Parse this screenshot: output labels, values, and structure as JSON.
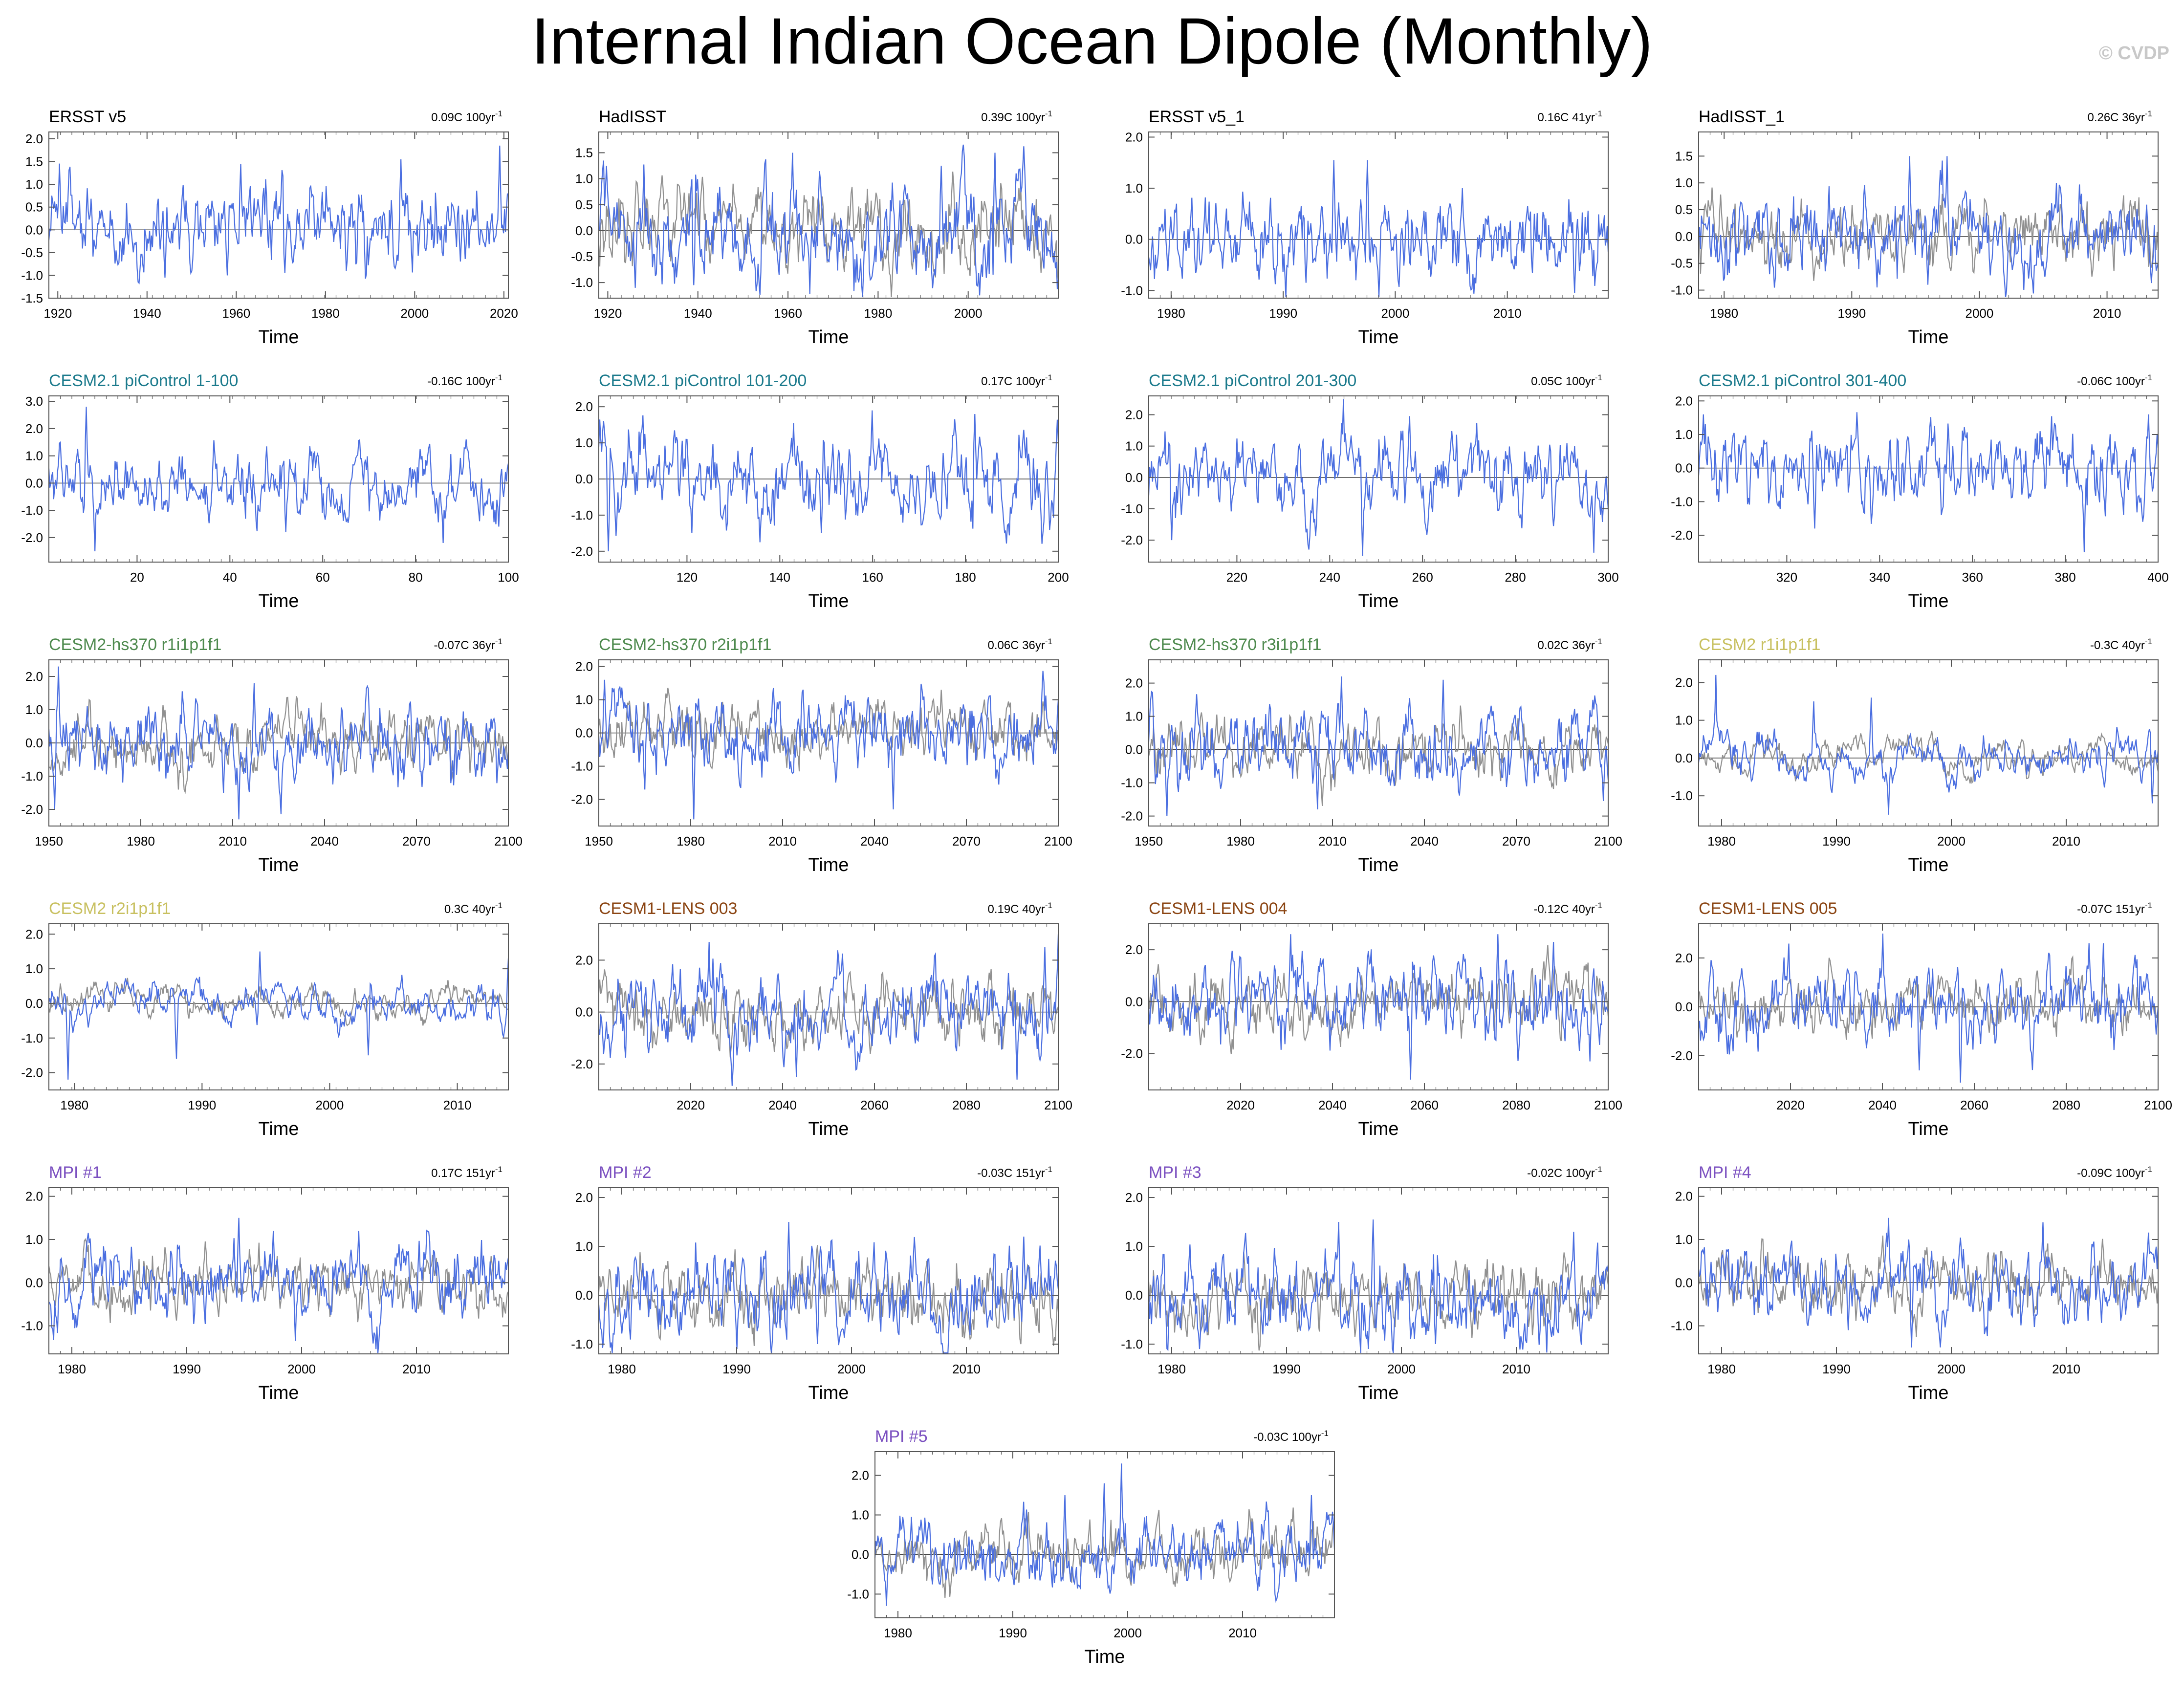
{
  "page_title": "Internal Indian Ocean Dipole (Monthly)",
  "copyright": "© CVDP",
  "x_axis_label": "Time",
  "colors": {
    "model": "#4a6ee0",
    "observed": "#909090",
    "zero_line": "#404040",
    "frame": "#555555"
  },
  "chart_data": [
    {
      "type": "line",
      "title": "ERSST v5",
      "title_color": "#000000",
      "trend": "0.09C 100yr",
      "trend_sup": "-1",
      "xlim": [
        1918,
        2021
      ],
      "ylim": [
        -1.5,
        2.15
      ],
      "xticks": [
        "1920",
        "1940",
        "1960",
        "1980",
        "2000",
        "2020"
      ],
      "yticks": [
        "-1.5",
        "-1.0",
        "-0.5",
        "0.0",
        "0.5",
        "1.0",
        "1.5",
        "2.0"
      ],
      "seed": 11,
      "amp": 0.55,
      "overlay": false,
      "spikes": [
        [
          1961,
          1.45
        ],
        [
          1997,
          1.55
        ],
        [
          2019,
          1.85
        ],
        [
          1944,
          -1.05
        ],
        [
          1958,
          -1.0
        ],
        [
          1971,
          -0.95
        ]
      ]
    },
    {
      "type": "line",
      "title": "HadISST",
      "title_color": "#000000",
      "trend": "0.39C 100yr",
      "trend_sup": "-1",
      "xlim": [
        1918,
        2020
      ],
      "ylim": [
        -1.3,
        1.9
      ],
      "xticks": [
        "1920",
        "1940",
        "1960",
        "1980",
        "2000"
      ],
      "yticks": [
        "-1.0",
        "-0.5",
        "0.0",
        "0.5",
        "1.0",
        "1.5"
      ],
      "seed": 12,
      "amp": 0.55,
      "overlay": true,
      "spikes": [
        [
          1961,
          1.5
        ],
        [
          1994,
          1.25
        ],
        [
          2006,
          1.5
        ],
        [
          1926,
          -1.1
        ],
        [
          1939,
          -1.05
        ],
        [
          1975,
          -1.0
        ]
      ]
    },
    {
      "type": "line",
      "title": "ERSST v5_1",
      "title_color": "#000000",
      "trend": "0.16C 41yr",
      "trend_sup": "-1",
      "xlim": [
        1978,
        2019
      ],
      "ylim": [
        -1.15,
        2.1
      ],
      "xticks": [
        "1980",
        "1990",
        "2000",
        "2010"
      ],
      "yticks": [
        "-1.0",
        "0.0",
        "1.0",
        "2.0"
      ],
      "seed": 13,
      "amp": 0.5,
      "overlay": false,
      "spikes": [
        [
          1994.5,
          1.55
        ],
        [
          1997.5,
          1.55
        ],
        [
          2006,
          1.0
        ],
        [
          2016,
          -1.05
        ],
        [
          1992,
          -0.85
        ]
      ]
    },
    {
      "type": "line",
      "title": "HadISST_1",
      "title_color": "#000000",
      "trend": "0.26C 36yr",
      "trend_sup": "-1",
      "xlim": [
        1978,
        2014
      ],
      "ylim": [
        -1.15,
        1.95
      ],
      "xticks": [
        "1980",
        "1990",
        "2000",
        "2010"
      ],
      "yticks": [
        "-1.0",
        "-0.5",
        "0.0",
        "0.5",
        "1.0",
        "1.5"
      ],
      "seed": 14,
      "amp": 0.45,
      "overlay": true,
      "spikes": [
        [
          1994.5,
          1.5
        ],
        [
          1997.5,
          1.5
        ],
        [
          2006,
          1.0
        ],
        [
          1992,
          -0.95
        ],
        [
          1996,
          -0.9
        ]
      ]
    },
    {
      "type": "line",
      "title": "CESM2.1 piControl 1-100",
      "title_color": "#1b7a8c",
      "trend": "-0.16C 100yr",
      "trend_sup": "-1",
      "xlim": [
        1,
        100
      ],
      "ylim": [
        -2.9,
        3.2
      ],
      "xticks": [
        "20",
        "40",
        "60",
        "80",
        "100"
      ],
      "yticks": [
        "-2.0",
        "-1.0",
        "0.0",
        "1.0",
        "2.0",
        "3.0"
      ],
      "seed": 21,
      "amp": 0.7,
      "overlay": false,
      "spikes": [
        [
          9,
          2.8
        ],
        [
          11,
          -2.5
        ],
        [
          86,
          -2.2
        ],
        [
          98,
          -1.6
        ],
        [
          52,
          -1.8
        ]
      ]
    },
    {
      "type": "line",
      "title": "CESM2.1 piControl 101-200",
      "title_color": "#1b7a8c",
      "trend": "0.17C 100yr",
      "trend_sup": "-1",
      "xlim": [
        101,
        200
      ],
      "ylim": [
        -2.3,
        2.3
      ],
      "xticks": [
        "120",
        "140",
        "160",
        "180",
        "200"
      ],
      "yticks": [
        "-2.0",
        "-1.0",
        "0.0",
        "1.0",
        "2.0"
      ],
      "seed": 22,
      "amp": 0.7,
      "overlay": false,
      "spikes": [
        [
          103,
          -2.0
        ],
        [
          160,
          1.9
        ],
        [
          182,
          1.8
        ],
        [
          121,
          -1.5
        ],
        [
          149,
          -1.5
        ]
      ]
    },
    {
      "type": "line",
      "title": "CESM2.1 piControl 201-300",
      "title_color": "#1b7a8c",
      "trend": "0.05C 100yr",
      "trend_sup": "-1",
      "xlim": [
        201,
        300
      ],
      "ylim": [
        -2.7,
        2.6
      ],
      "xticks": [
        "220",
        "240",
        "260",
        "280",
        "300"
      ],
      "yticks": [
        "-2.0",
        "-1.0",
        "0.0",
        "1.0",
        "2.0"
      ],
      "seed": 23,
      "amp": 0.7,
      "overlay": false,
      "spikes": [
        [
          243,
          2.5
        ],
        [
          247,
          -2.5
        ],
        [
          297,
          -2.4
        ],
        [
          206,
          -2.0
        ]
      ]
    },
    {
      "type": "line",
      "title": "CESM2.1 piControl 301-400",
      "title_color": "#1b7a8c",
      "trend": "-0.06C 100yr",
      "trend_sup": "-1",
      "xlim": [
        301,
        400
      ],
      "ylim": [
        -2.8,
        2.15
      ],
      "xticks": [
        "320",
        "340",
        "360",
        "380",
        "400"
      ],
      "yticks": [
        "-2.0",
        "-1.0",
        "0.0",
        "1.0",
        "2.0"
      ],
      "seed": 24,
      "amp": 0.7,
      "overlay": false,
      "spikes": [
        [
          384,
          -2.5
        ],
        [
          398,
          1.6
        ],
        [
          326,
          -1.8
        ],
        [
          302,
          1.6
        ]
      ]
    },
    {
      "type": "line",
      "title": "CESM2-hs370 r1i1p1f1",
      "title_color": "#4e8a4e",
      "trend": "-0.07C 36yr",
      "trend_sup": "-1",
      "xlim": [
        1950,
        2100
      ],
      "ylim": [
        -2.5,
        2.5
      ],
      "xticks": [
        "1950",
        "1980",
        "2010",
        "2040",
        "2070",
        "2100"
      ],
      "yticks": [
        "-2.0",
        "-1.0",
        "0.0",
        "1.0",
        "2.0"
      ],
      "seed": 31,
      "amp": 0.65,
      "overlay": true,
      "spikes": [
        [
          1953,
          2.3
        ],
        [
          1952,
          -2.0
        ],
        [
          2012,
          -2.3
        ],
        [
          2017,
          1.8
        ],
        [
          2007,
          -1.5
        ]
      ]
    },
    {
      "type": "line",
      "title": "CESM2-hs370 r2i1p1f1",
      "title_color": "#4e8a4e",
      "trend": "0.06C 36yr",
      "trend_sup": "-1",
      "xlim": [
        1950,
        2100
      ],
      "ylim": [
        -2.8,
        2.2
      ],
      "xticks": [
        "1950",
        "1980",
        "2010",
        "2040",
        "2070",
        "2100"
      ],
      "yticks": [
        "-2.0",
        "-1.0",
        "0.0",
        "1.0",
        "2.0"
      ],
      "seed": 32,
      "amp": 0.65,
      "overlay": true,
      "spikes": [
        [
          1981,
          -2.6
        ],
        [
          2046,
          -2.3
        ],
        [
          1952,
          1.6
        ],
        [
          2100,
          1.0
        ]
      ]
    },
    {
      "type": "line",
      "title": "CESM2-hs370 r3i1p1f1",
      "title_color": "#4e8a4e",
      "trend": "0.02C 36yr",
      "trend_sup": "-1",
      "xlim": [
        1950,
        2100
      ],
      "ylim": [
        -2.3,
        2.7
      ],
      "xticks": [
        "1950",
        "1980",
        "2010",
        "2040",
        "2070",
        "2100"
      ],
      "yticks": [
        "-2.0",
        "-1.0",
        "0.0",
        "1.0",
        "2.0"
      ],
      "seed": 33,
      "amp": 0.65,
      "overlay": true,
      "spikes": [
        [
          2013,
          2.2
        ],
        [
          2046,
          2.1
        ],
        [
          1956,
          -2.0
        ],
        [
          2005,
          -1.8
        ]
      ]
    },
    {
      "type": "line",
      "title": "CESM2 r1i1p1f1",
      "title_color": "#c8c060",
      "trend": "-0.3C 40yr",
      "trend_sup": "-1",
      "xlim": [
        1978,
        2018
      ],
      "ylim": [
        -1.8,
        2.6
      ],
      "xticks": [
        "1980",
        "1990",
        "2000",
        "2010"
      ],
      "yticks": [
        "-1.0",
        "0.0",
        "1.0",
        "2.0"
      ],
      "seed": 34,
      "amp": 0.55,
      "overlay": true,
      "smooth": true,
      "spikes": [
        [
          1979.5,
          2.2
        ],
        [
          1994.5,
          -1.5
        ],
        [
          2017.5,
          -1.2
        ],
        [
          1988,
          1.5
        ],
        [
          1993,
          1.6
        ]
      ]
    },
    {
      "type": "line",
      "title": "CESM2 r2i1p1f1",
      "title_color": "#c8c060",
      "trend": "0.3C 40yr",
      "trend_sup": "-1",
      "xlim": [
        1978,
        2014
      ],
      "ylim": [
        -2.5,
        2.3
      ],
      "xticks": [
        "1980",
        "1990",
        "2000",
        "2010"
      ],
      "yticks": [
        "-2.0",
        "-1.0",
        "0.0",
        "1.0",
        "2.0"
      ],
      "seed": 35,
      "amp": 0.55,
      "overlay": true,
      "smooth": true,
      "spikes": [
        [
          1979.5,
          -2.2
        ],
        [
          1994.5,
          1.5
        ],
        [
          2003,
          -1.5
        ],
        [
          1988,
          -1.6
        ],
        [
          2014,
          1.3
        ]
      ]
    },
    {
      "type": "line",
      "title": "CESM1-LENS 003",
      "title_color": "#8b4513",
      "trend": "0.19C 40yr",
      "trend_sup": "-1",
      "xlim": [
        2000,
        2100
      ],
      "ylim": [
        -3.0,
        3.4
      ],
      "xticks": [
        "2020",
        "2040",
        "2060",
        "2080",
        "2100"
      ],
      "yticks": [
        "-2.0",
        "0.0",
        "2.0"
      ],
      "seed": 41,
      "amp": 0.85,
      "overlay": true,
      "spikes": [
        [
          2024,
          2.7
        ],
        [
          2100,
          3.0
        ],
        [
          2043,
          -2.5
        ],
        [
          2091,
          -2.6
        ],
        [
          2097,
          2.5
        ]
      ]
    },
    {
      "type": "line",
      "title": "CESM1-LENS 004",
      "title_color": "#8b4513",
      "trend": "-0.12C 40yr",
      "trend_sup": "-1",
      "xlim": [
        2000,
        2100
      ],
      "ylim": [
        -3.4,
        3.0
      ],
      "xticks": [
        "2020",
        "2040",
        "2060",
        "2080",
        "2100"
      ],
      "yticks": [
        "-2.0",
        "0.0",
        "2.0"
      ],
      "seed": 42,
      "amp": 0.85,
      "overlay": true,
      "spikes": [
        [
          2031,
          2.6
        ],
        [
          2076,
          2.6
        ],
        [
          2057,
          -3.0
        ],
        [
          2096,
          -2.3
        ],
        [
          2088,
          2.3
        ]
      ]
    },
    {
      "type": "line",
      "title": "CESM1-LENS 005",
      "title_color": "#8b4513",
      "trend": "-0.07C 151yr",
      "trend_sup": "-1",
      "xlim": [
        2000,
        2100
      ],
      "ylim": [
        -3.4,
        3.4
      ],
      "xticks": [
        "2020",
        "2040",
        "2060",
        "2080",
        "2100"
      ],
      "yticks": [
        "-2.0",
        "0.0",
        "2.0"
      ],
      "seed": 43,
      "amp": 0.85,
      "overlay": true,
      "spikes": [
        [
          2040,
          3.0
        ],
        [
          2057,
          -3.1
        ],
        [
          2088,
          2.6
        ],
        [
          2048,
          -2.6
        ]
      ]
    },
    {
      "type": "line",
      "title": "MPI #1",
      "title_color": "#7b50c0",
      "trend": "0.17C 151yr",
      "trend_sup": "-1",
      "xlim": [
        1978,
        2018
      ],
      "ylim": [
        -1.65,
        2.2
      ],
      "xticks": [
        "1980",
        "1990",
        "2000",
        "2010"
      ],
      "yticks": [
        "-1.0",
        "0.0",
        "1.0",
        "2.0"
      ],
      "seed": 51,
      "amp": 0.5,
      "overlay": true,
      "spikes": [
        [
          1994.5,
          1.5
        ],
        [
          1999.5,
          -1.35
        ],
        [
          1997.5,
          1.2
        ],
        [
          2005,
          1.2
        ]
      ]
    },
    {
      "type": "line",
      "title": "MPI #2",
      "title_color": "#7b50c0",
      "trend": "-0.03C 151yr",
      "trend_sup": "-1",
      "xlim": [
        1978,
        2018
      ],
      "ylim": [
        -1.2,
        2.2
      ],
      "xticks": [
        "1980",
        "1990",
        "2000",
        "2010"
      ],
      "yticks": [
        "-1.0",
        "0.0",
        "1.0",
        "2.0"
      ],
      "seed": 52,
      "amp": 0.5,
      "overlay": true,
      "spikes": [
        [
          1994.5,
          1.5
        ],
        [
          1990,
          -1.1
        ],
        [
          1997,
          -1.0
        ],
        [
          2015,
          1.2
        ]
      ]
    },
    {
      "type": "line",
      "title": "MPI #3",
      "title_color": "#7b50c0",
      "trend": "-0.02C 100yr",
      "trend_sup": "-1",
      "xlim": [
        1978,
        2018
      ],
      "ylim": [
        -1.2,
        2.2
      ],
      "xticks": [
        "1980",
        "1990",
        "2000",
        "2010"
      ],
      "yticks": [
        "-1.0",
        "0.0",
        "1.0",
        "2.0"
      ],
      "seed": 53,
      "amp": 0.5,
      "overlay": true,
      "spikes": [
        [
          1994.5,
          1.5
        ],
        [
          1997.5,
          1.55
        ],
        [
          2003,
          -1.0
        ],
        [
          2015,
          1.3
        ]
      ]
    },
    {
      "type": "line",
      "title": "MPI #4",
      "title_color": "#7b50c0",
      "trend": "-0.09C 100yr",
      "trend_sup": "-1",
      "xlim": [
        1978,
        2018
      ],
      "ylim": [
        -1.65,
        2.2
      ],
      "xticks": [
        "1980",
        "1990",
        "2000",
        "2010"
      ],
      "yticks": [
        "-1.0",
        "0.0",
        "1.0",
        "2.0"
      ],
      "seed": 54,
      "amp": 0.5,
      "overlay": true,
      "spikes": [
        [
          1994.5,
          1.5
        ],
        [
          1996.5,
          -1.5
        ],
        [
          2008,
          1.4
        ],
        [
          1991,
          -1.1
        ]
      ]
    },
    {
      "type": "line",
      "title": "MPI #5",
      "title_color": "#7b50c0",
      "trend": "-0.03C 100yr",
      "trend_sup": "-1",
      "xlim": [
        1978,
        2018
      ],
      "ylim": [
        -1.6,
        2.6
      ],
      "xticks": [
        "1980",
        "1990",
        "2000",
        "2010"
      ],
      "yticks": [
        "-1.0",
        "0.0",
        "1.0",
        "2.0"
      ],
      "seed": 55,
      "amp": 0.5,
      "overlay": true,
      "spikes": [
        [
          1999.5,
          2.3
        ],
        [
          1998,
          1.8
        ],
        [
          1979,
          -1.3
        ],
        [
          1994.5,
          1.5
        ],
        [
          2016,
          1.5
        ]
      ]
    }
  ]
}
